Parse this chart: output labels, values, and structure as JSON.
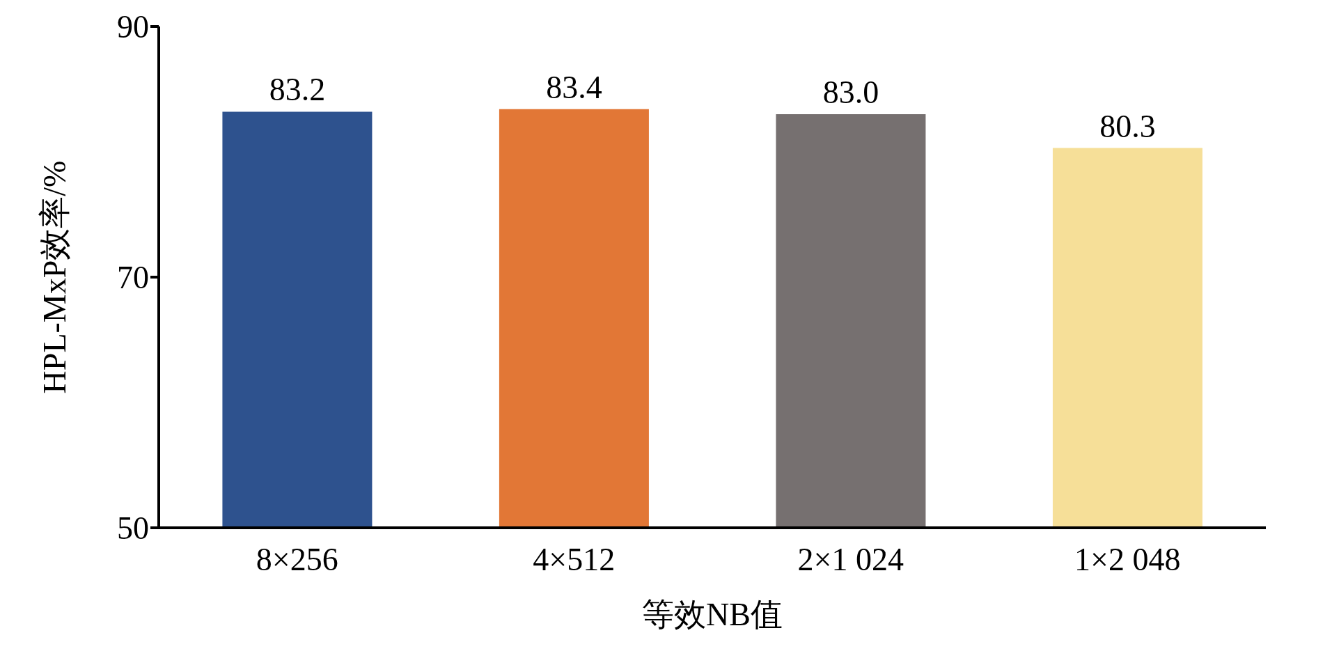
{
  "chart_data": {
    "type": "bar",
    "xlabel": "等效NB值",
    "ylabel": "HPL-MxP效率/%",
    "categories": [
      "8×256",
      "4×512",
      "2×1 024",
      "1×2 048"
    ],
    "values": [
      83.2,
      83.4,
      83.0,
      80.3
    ],
    "colors": [
      "#2e528e",
      "#e27736",
      "#767070",
      "#f6df98"
    ],
    "value_labels": [
      "83.2",
      "83.4",
      "83.0",
      "80.3"
    ],
    "ylim": [
      50,
      90
    ],
    "yticks": [
      50,
      70,
      90
    ],
    "grid": false,
    "legend": false
  }
}
